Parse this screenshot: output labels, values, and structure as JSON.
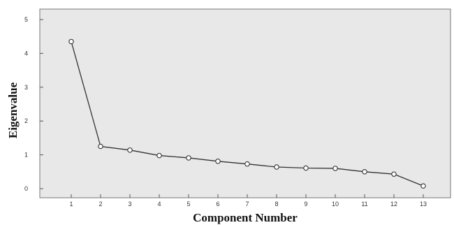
{
  "chart_data": {
    "type": "line",
    "title": "",
    "xlabel": "Component Number",
    "ylabel": "Eigenvalue",
    "x": [
      1,
      2,
      3,
      4,
      5,
      6,
      7,
      8,
      9,
      10,
      11,
      12,
      13
    ],
    "series": [
      {
        "values": [
          4.35,
          1.25,
          1.14,
          0.98,
          0.91,
          0.81,
          0.73,
          0.64,
          0.61,
          0.6,
          0.5,
          0.43,
          0.08
        ]
      }
    ],
    "xticks": [
      "1",
      "2",
      "3",
      "4",
      "5",
      "6",
      "7",
      "8",
      "9",
      "10",
      "11",
      "12",
      "13"
    ],
    "yticks": [
      "0",
      "1",
      "2",
      "3",
      "4",
      "5"
    ],
    "ylim": [
      0,
      5
    ],
    "xlim": [
      0.5,
      13.5
    ],
    "grid": false,
    "legend": "none",
    "colors": {
      "plot_background": "#e8e8e8",
      "line": "#333333",
      "marker_fill": "#ffffff"
    }
  }
}
